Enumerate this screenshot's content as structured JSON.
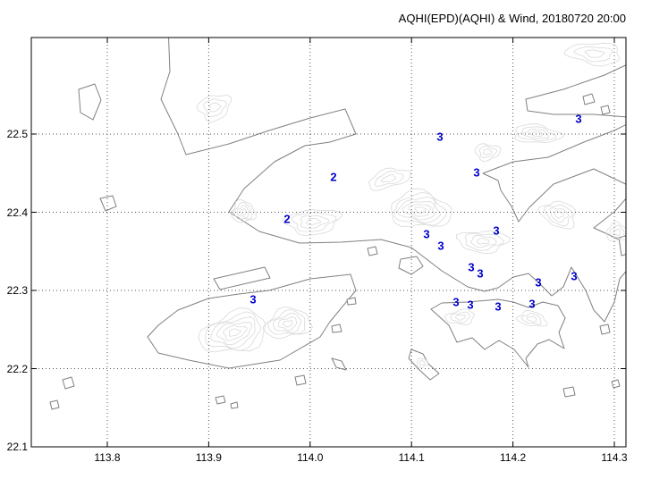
{
  "title": "AQHI(EPD)(AQHI) & Wind, 20180720 20:00",
  "colors": {
    "station": "#0000cd",
    "coast": "#808080",
    "contour": "#d9d9d9",
    "grid": "#555555",
    "frame": "#000000",
    "background": "#ffffff"
  },
  "chart_data": {
    "type": "scatter",
    "title": "AQHI(EPD)(AQHI) & Wind, 20180720 20:00",
    "x_ticks": [
      113.8,
      113.9,
      114.0,
      114.1,
      114.2,
      114.3
    ],
    "y_ticks": [
      22.5,
      22.4,
      22.3,
      22.2,
      22.1
    ],
    "xlim": [
      113.725,
      114.312
    ],
    "ylim": [
      22.1,
      22.623
    ],
    "grid": true,
    "points": [
      {
        "x": 114.023,
        "y": 22.445,
        "label": "2"
      },
      {
        "x": 113.977,
        "y": 22.391,
        "label": "2"
      },
      {
        "x": 114.128,
        "y": 22.497,
        "label": "3"
      },
      {
        "x": 114.164,
        "y": 22.451,
        "label": "3"
      },
      {
        "x": 114.265,
        "y": 22.519,
        "label": "3"
      },
      {
        "x": 114.115,
        "y": 22.372,
        "label": "3"
      },
      {
        "x": 114.184,
        "y": 22.377,
        "label": "3"
      },
      {
        "x": 114.129,
        "y": 22.357,
        "label": "3"
      },
      {
        "x": 114.159,
        "y": 22.33,
        "label": "3"
      },
      {
        "x": 114.168,
        "y": 22.322,
        "label": "3"
      },
      {
        "x": 114.225,
        "y": 22.31,
        "label": "3"
      },
      {
        "x": 114.26,
        "y": 22.318,
        "label": "3"
      },
      {
        "x": 113.944,
        "y": 22.289,
        "label": "3"
      },
      {
        "x": 114.144,
        "y": 22.285,
        "label": "3"
      },
      {
        "x": 114.158,
        "y": 22.282,
        "label": "3"
      },
      {
        "x": 114.185,
        "y": 22.28,
        "label": "3"
      },
      {
        "x": 114.219,
        "y": 22.283,
        "label": "3"
      }
    ]
  }
}
